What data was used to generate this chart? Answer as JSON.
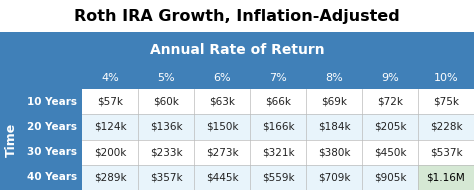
{
  "title": "Roth IRA Growth, Inflation-Adjusted",
  "col_header_label": "Annual Rate of Return",
  "row_header_label": "Time",
  "col_headers": [
    "4%",
    "5%",
    "6%",
    "7%",
    "8%",
    "9%",
    "10%"
  ],
  "row_headers": [
    "10 Years",
    "20 Years",
    "30 Years",
    "40 Years"
  ],
  "table_data": [
    [
      "$57k",
      "$60k",
      "$63k",
      "$66k",
      "$69k",
      "$72k",
      "$75k"
    ],
    [
      "$124k",
      "$136k",
      "$150k",
      "$166k",
      "$184k",
      "$205k",
      "$228k"
    ],
    [
      "$200k",
      "$233k",
      "$273k",
      "$321k",
      "$380k",
      "$450k",
      "$537k"
    ],
    [
      "$289k",
      "$357k",
      "$445k",
      "$559k",
      "$709k",
      "$905k",
      "$1.16M"
    ]
  ],
  "highlight_cell": [
    3,
    6
  ],
  "bg_color": "#4080B8",
  "table_bg": "#FFFFFF",
  "header_text_color": "#FFFFFF",
  "title_color": "#000000",
  "row_header_color": "#FFFFFF",
  "cell_text_color": "#222222",
  "highlight_bg": "#D5E8D4",
  "highlight_text_color": "#000000",
  "outer_bg": "#FFFFFF",
  "row_alt_colors": [
    "#FFFFFF",
    "#E8F4FB"
  ],
  "title_fontsize": 11.5,
  "banner_fontsize": 10,
  "col_hdr_fontsize": 8,
  "cell_fontsize": 7.5,
  "row_hdr_fontsize": 7.5,
  "time_fontsize": 9
}
